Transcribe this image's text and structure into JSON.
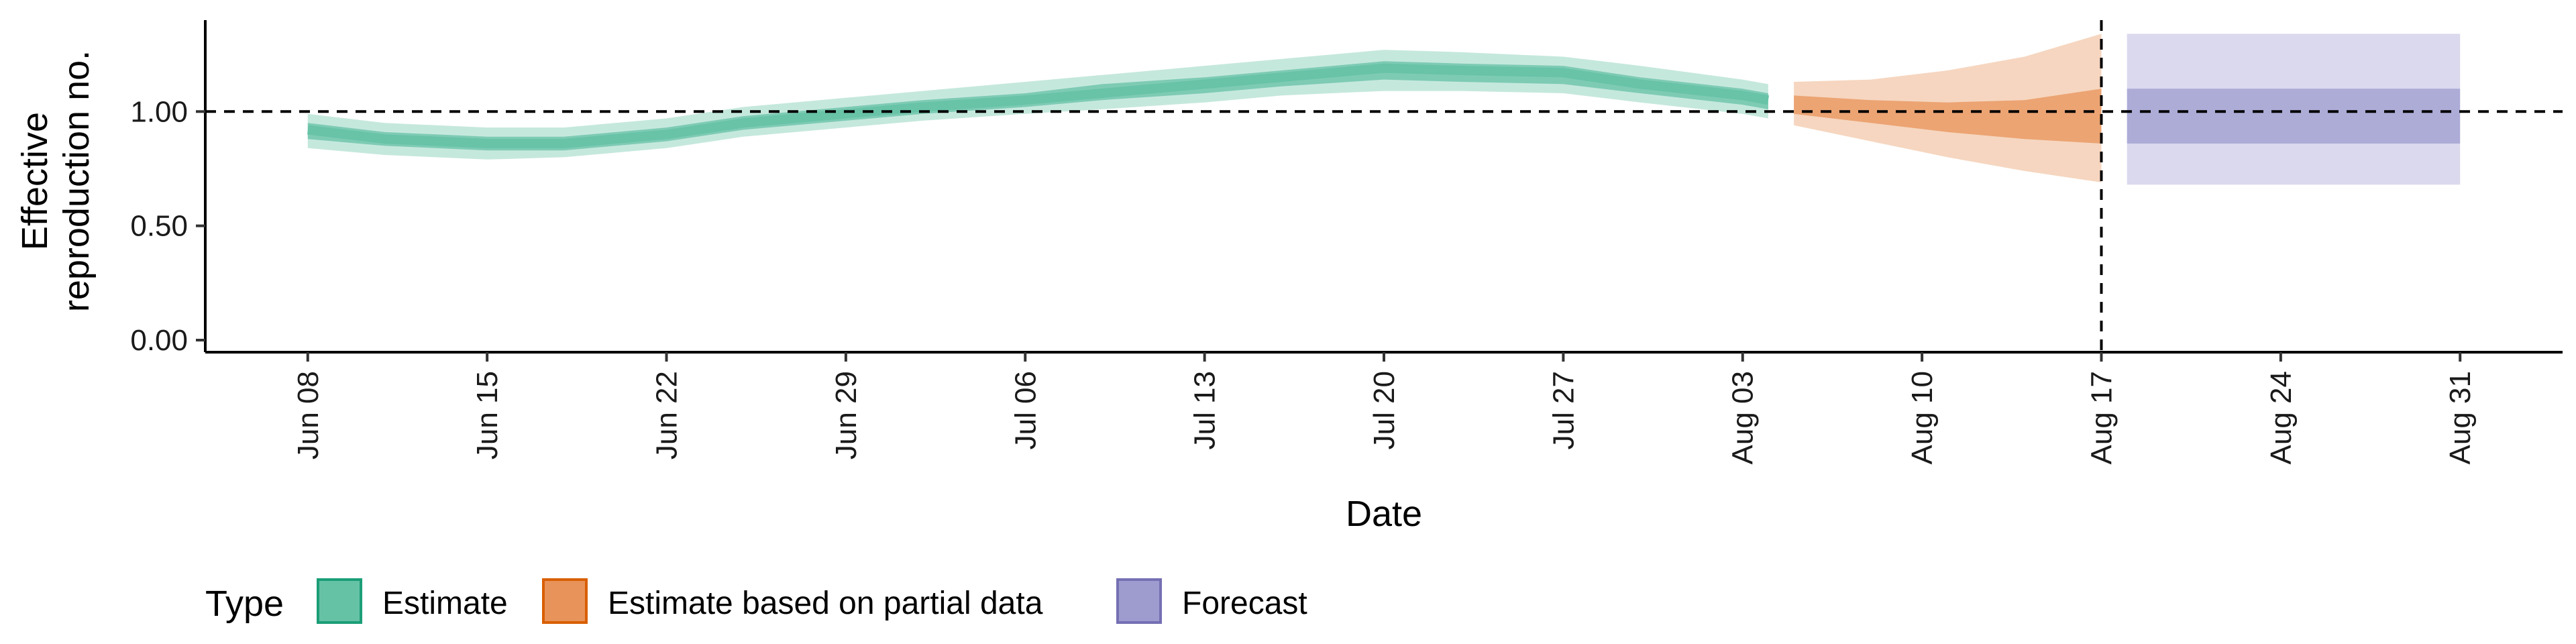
{
  "chart_data": {
    "type": "area",
    "xlabel": "Date",
    "ylabel_lines": [
      "Effective",
      "reproduction no."
    ],
    "ylim": [
      0,
      1.4
    ],
    "yticks": [
      0,
      0.5,
      1.0
    ],
    "ytick_labels": [
      "0.00",
      "0.50",
      "1.00"
    ],
    "xlim": [
      "2020-06-04",
      "2020-09-04"
    ],
    "xticks": [
      "2020-06-08",
      "2020-06-15",
      "2020-06-22",
      "2020-06-29",
      "2020-07-06",
      "2020-07-13",
      "2020-07-20",
      "2020-07-27",
      "2020-08-03",
      "2020-08-10",
      "2020-08-17",
      "2020-08-24",
      "2020-08-31"
    ],
    "xtick_labels": [
      "Jun 08",
      "Jun 15",
      "Jun 22",
      "Jun 29",
      "Jul 06",
      "Jul 13",
      "Jul 20",
      "Jul 27",
      "Aug 03",
      "Aug 10",
      "Aug 17",
      "Aug 24",
      "Aug 31"
    ],
    "reference_line_y": 1.0,
    "reference_line_x": "2020-08-17",
    "grid": false,
    "legend": {
      "position": "bottom-left",
      "title": "Type",
      "items": [
        {
          "label": "Estimate",
          "fill": "#66c2a5",
          "stroke": "#1b9e77"
        },
        {
          "label": "Estimate based on partial data",
          "fill": "#e8935a",
          "stroke": "#d95f02"
        },
        {
          "label": "Forecast",
          "fill": "#9e9ccf",
          "stroke": "#7570b3"
        }
      ]
    },
    "series": [
      {
        "name": "Estimate",
        "color": "#1b9e77",
        "x": [
          "2020-06-08",
          "2020-06-11",
          "2020-06-15",
          "2020-06-18",
          "2020-06-22",
          "2020-06-25",
          "2020-06-29",
          "2020-07-02",
          "2020-07-06",
          "2020-07-09",
          "2020-07-13",
          "2020-07-16",
          "2020-07-20",
          "2020-07-23",
          "2020-07-27",
          "2020-07-30",
          "2020-08-03",
          "2020-08-04"
        ],
        "median": [
          0.92,
          0.88,
          0.86,
          0.86,
          0.9,
          0.95,
          0.99,
          1.02,
          1.05,
          1.08,
          1.12,
          1.15,
          1.19,
          1.18,
          1.17,
          1.12,
          1.07,
          1.05
        ],
        "lower_50": [
          0.88,
          0.85,
          0.83,
          0.83,
          0.87,
          0.92,
          0.96,
          0.99,
          1.02,
          1.05,
          1.08,
          1.11,
          1.14,
          1.13,
          1.12,
          1.08,
          1.03,
          1.01
        ],
        "upper_50": [
          0.95,
          0.91,
          0.89,
          0.89,
          0.93,
          0.98,
          1.02,
          1.05,
          1.08,
          1.12,
          1.15,
          1.18,
          1.22,
          1.21,
          1.2,
          1.15,
          1.1,
          1.08
        ],
        "lower_90": [
          0.84,
          0.81,
          0.79,
          0.8,
          0.84,
          0.89,
          0.93,
          0.96,
          0.99,
          1.01,
          1.04,
          1.07,
          1.09,
          1.09,
          1.08,
          1.04,
          0.99,
          0.97
        ],
        "upper_90": [
          0.99,
          0.95,
          0.93,
          0.93,
          0.97,
          1.02,
          1.06,
          1.09,
          1.13,
          1.16,
          1.2,
          1.23,
          1.27,
          1.26,
          1.24,
          1.2,
          1.14,
          1.12
        ]
      },
      {
        "name": "Estimate based on partial data",
        "color": "#d95f02",
        "x": [
          "2020-08-05",
          "2020-08-08",
          "2020-08-11",
          "2020-08-14",
          "2020-08-17"
        ],
        "median": [
          1.03,
          1.0,
          0.97,
          0.95,
          0.96
        ],
        "lower_50": [
          0.99,
          0.95,
          0.91,
          0.88,
          0.86
        ],
        "upper_50": [
          1.07,
          1.05,
          1.04,
          1.05,
          1.1
        ],
        "lower_90": [
          0.94,
          0.87,
          0.8,
          0.74,
          0.69
        ],
        "upper_90": [
          1.13,
          1.14,
          1.18,
          1.24,
          1.34
        ]
      },
      {
        "name": "Forecast",
        "color": "#7570b3",
        "x": [
          "2020-08-18",
          "2020-08-31"
        ],
        "median": [
          0.98,
          0.98
        ],
        "lower_50": [
          0.86,
          0.86
        ],
        "upper_50": [
          1.1,
          1.1
        ],
        "lower_90": [
          0.68,
          0.68
        ],
        "upper_90": [
          1.34,
          1.34
        ]
      }
    ]
  }
}
